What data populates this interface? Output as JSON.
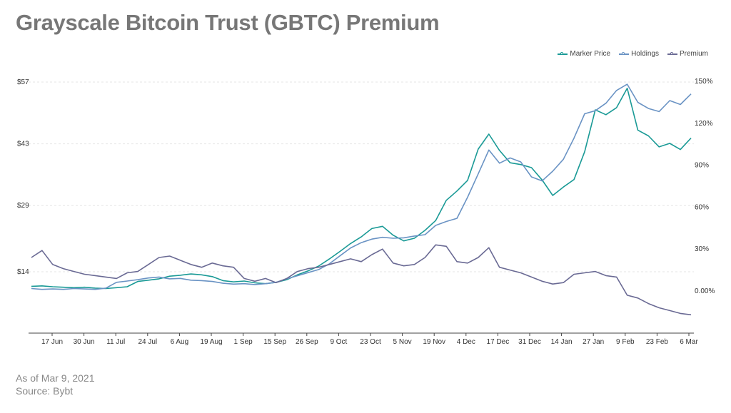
{
  "title": "Grayscale Bitcoin Trust (GBTC) Premium",
  "footer": {
    "as_of": "As of Mar 9, 2021",
    "source": "Source: Bybt"
  },
  "colors": {
    "market": "#1a9a96",
    "holdings": "#6a93c4",
    "premium": "#6a6a94",
    "grid": "#e6e6e6",
    "axis": "#444444"
  },
  "chart_data": {
    "type": "line",
    "title": "Grayscale Bitcoin Trust (GBTC) Premium",
    "xlabel": "",
    "ylabel": "",
    "x_ticks": [
      "17 Jun",
      "30 Jun",
      "11 Jul",
      "24 Jul",
      "6 Aug",
      "19 Aug",
      "1 Sep",
      "15 Sep",
      "26 Sep",
      "9 Oct",
      "23 Oct",
      "5 Nov",
      "19 Nov",
      "4 Dec",
      "17 Dec",
      "31 Dec",
      "14 Jan",
      "27 Jan",
      "9 Feb",
      "23 Feb",
      "6 Mar"
    ],
    "y_left": {
      "ticks": [
        14,
        29,
        43,
        57
      ],
      "tick_labels": [
        "$14",
        "$29",
        "$43",
        "$57"
      ],
      "range": [
        0,
        57
      ]
    },
    "y_right": {
      "ticks": [
        0,
        30,
        60,
        90,
        120,
        150
      ],
      "tick_labels": [
        "0.00%",
        "30%",
        "60%",
        "90%",
        "120%",
        "150%"
      ],
      "range": [
        -25,
        150
      ]
    },
    "grid": true,
    "legend": "top-right",
    "series": [
      {
        "name": "Marker Price",
        "axis": "left",
        "color": "#1a9a96",
        "values": [
          10.7,
          10.8,
          10.6,
          10.5,
          10.4,
          10.5,
          10.3,
          10.2,
          10.4,
          10.6,
          11.8,
          12.1,
          12.4,
          13.0,
          13.2,
          13.5,
          13.3,
          12.9,
          12.0,
          11.7,
          11.9,
          11.5,
          11.3,
          11.6,
          12.2,
          13.3,
          14.2,
          15.3,
          16.9,
          18.6,
          20.4,
          21.9,
          23.8,
          24.3,
          22.3,
          21.0,
          21.6,
          23.4,
          25.6,
          30.2,
          32.3,
          34.7,
          41.8,
          45.2,
          41.5,
          38.7,
          38.3,
          37.6,
          34.8,
          31.3,
          33.2,
          34.9,
          41.2,
          50.7,
          49.6,
          51.2,
          55.6,
          46.1,
          44.8,
          42.3,
          43.1,
          41.7,
          44.3
        ]
      },
      {
        "name": "Holdings",
        "axis": "left",
        "color": "#6a93c4",
        "values": [
          10.2,
          10.0,
          10.1,
          10.0,
          10.2,
          10.1,
          10.0,
          10.3,
          11.6,
          11.9,
          12.2,
          12.6,
          12.8,
          12.4,
          12.5,
          12.1,
          12.0,
          11.8,
          11.4,
          11.2,
          11.3,
          11.1,
          11.3,
          11.6,
          12.4,
          13.1,
          13.8,
          14.5,
          15.8,
          17.6,
          19.4,
          20.6,
          21.4,
          21.8,
          21.6,
          21.7,
          22.1,
          22.4,
          24.5,
          25.4,
          26.1,
          30.9,
          36.2,
          41.6,
          38.6,
          39.8,
          38.9,
          35.5,
          34.6,
          36.8,
          39.5,
          44.3,
          49.8,
          50.5,
          52.2,
          55.1,
          56.5,
          52.4,
          51.0,
          50.3,
          52.8,
          51.9,
          54.3
        ]
      },
      {
        "name": "Premium",
        "axis": "right",
        "color": "#6a6a94",
        "values": [
          24,
          29,
          19,
          16,
          14,
          12,
          11,
          10,
          9,
          13,
          14,
          19,
          24,
          25,
          22,
          19,
          17,
          20,
          18,
          17,
          9,
          7,
          9,
          6,
          9,
          14,
          16,
          17,
          19,
          21,
          23,
          21,
          26,
          30,
          20,
          18,
          19,
          24,
          33,
          32,
          21,
          20,
          24,
          31,
          17,
          15,
          13,
          10,
          7,
          5,
          6,
          12,
          13,
          14,
          11,
          10,
          -3,
          -5,
          -9,
          -12,
          -14,
          -16,
          -17
        ]
      }
    ]
  }
}
